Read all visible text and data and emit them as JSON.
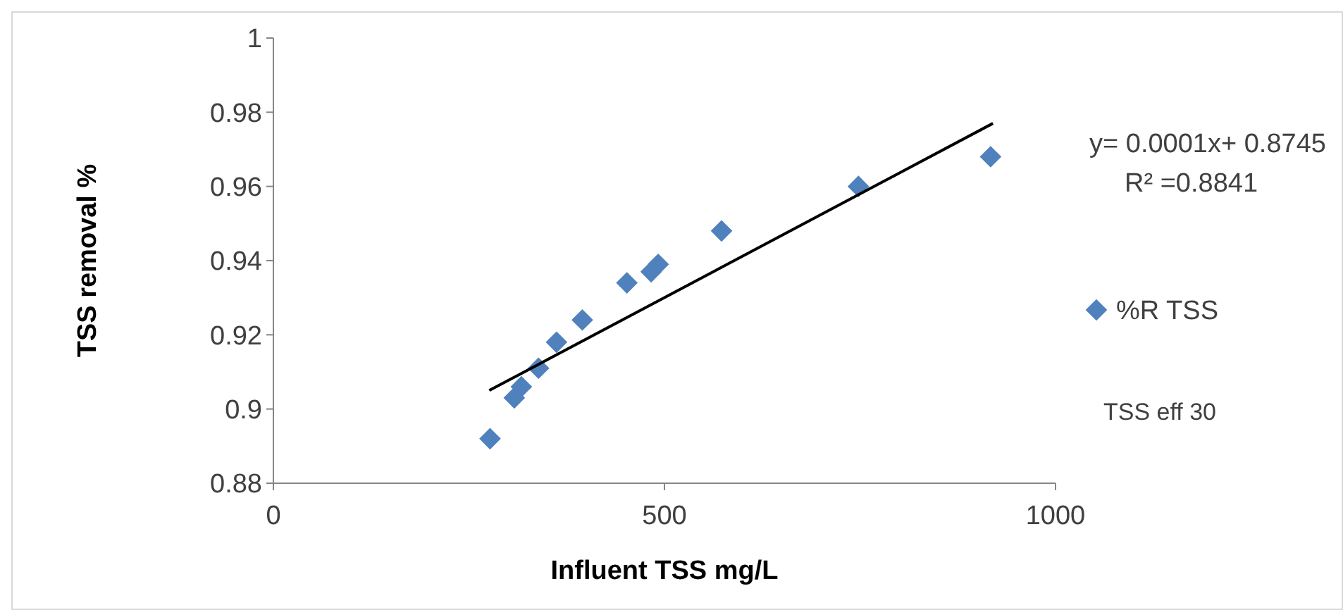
{
  "chart_data": {
    "type": "scatter",
    "xlabel": "Influent TSS mg/L",
    "ylabel": "TSS removal %",
    "xlim": [
      0,
      1000
    ],
    "xticks": [
      0,
      500,
      1000
    ],
    "ylim": [
      0.88,
      1
    ],
    "yticks": [
      0.88,
      0.9,
      0.92,
      0.94,
      0.96,
      0.98,
      1
    ],
    "series": [
      {
        "name": "%R TSS",
        "color": "#4f81bd",
        "marker": "diamond",
        "x": [
          277,
          308,
          317,
          339,
          362,
          395,
          452,
          483,
          492,
          573,
          748,
          917
        ],
        "values": [
          0.892,
          0.903,
          0.906,
          0.911,
          0.918,
          0.924,
          0.934,
          0.937,
          0.939,
          0.948,
          0.96,
          0.968
        ]
      },
      {
        "type": "line",
        "color": "#000000",
        "line_style": "solid",
        "x": [
          276,
          920
        ],
        "values": [
          0.905,
          0.977
        ]
      }
    ],
    "legend": "right",
    "grid": false,
    "annotations": [
      "y= 0.0001x+ 0.8745",
      "R² =0.8841",
      "TSS eff 30"
    ]
  }
}
